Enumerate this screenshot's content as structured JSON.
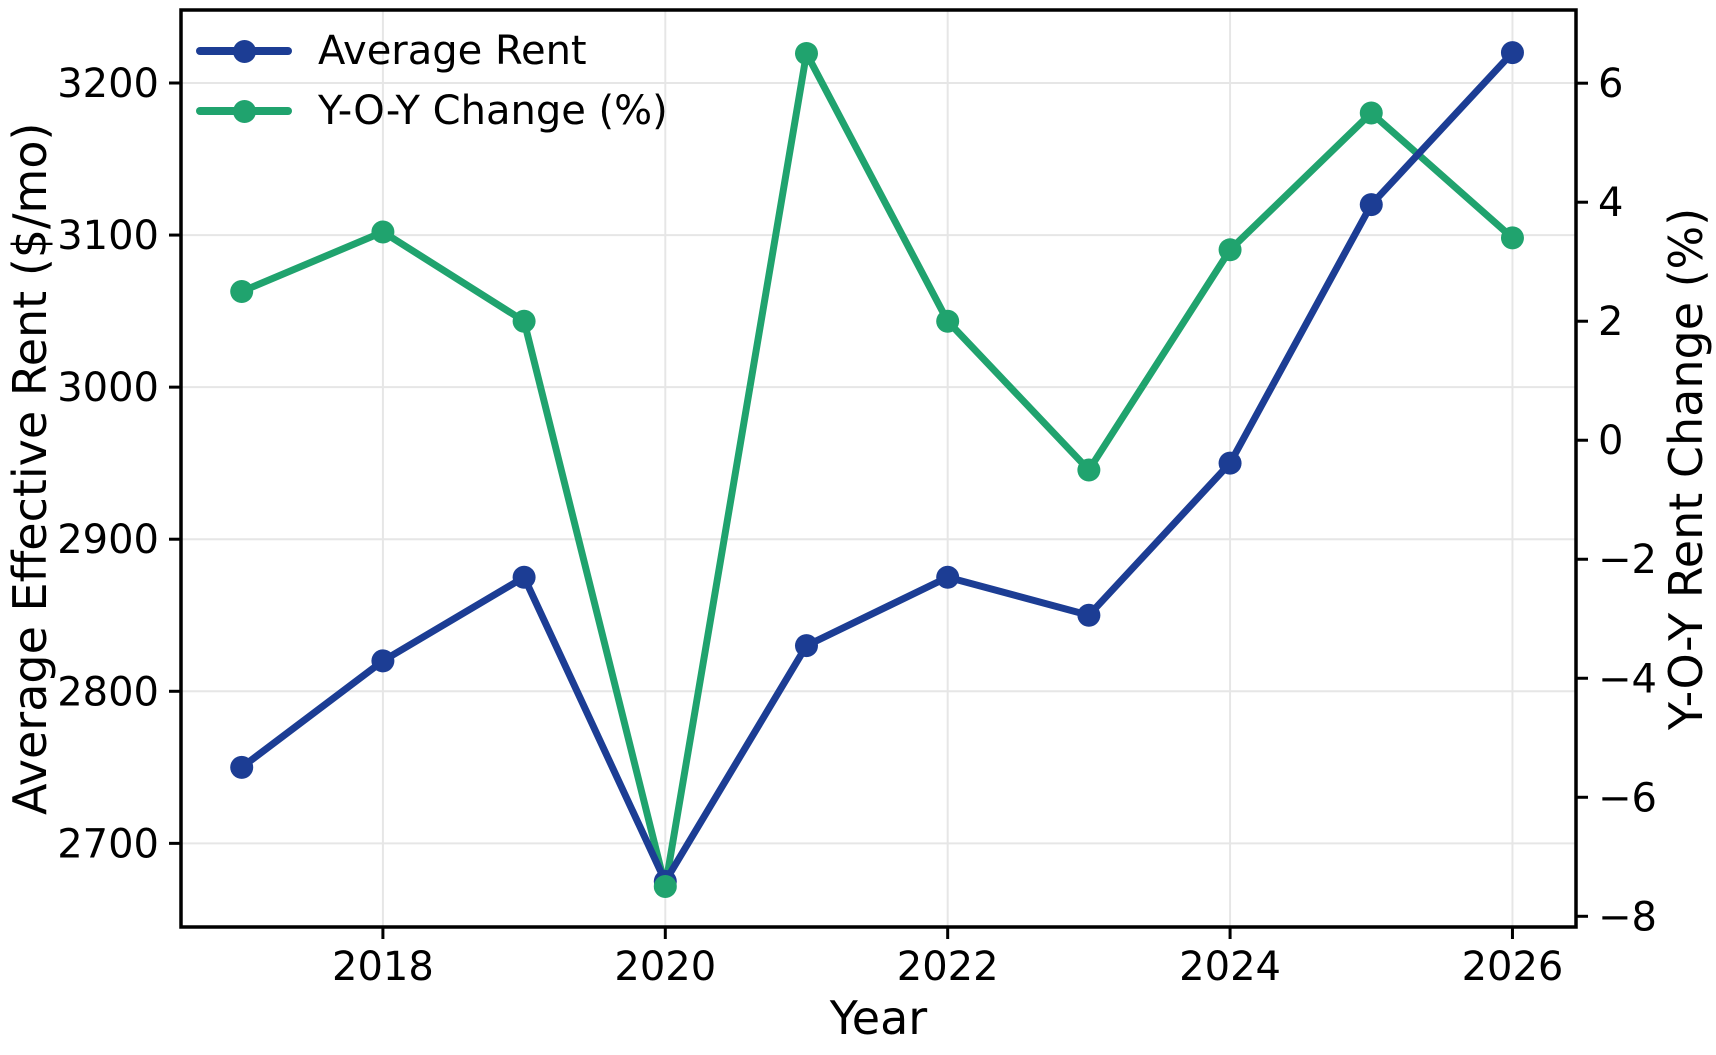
{
  "chart_data": {
    "type": "line",
    "x": [
      2017,
      2018,
      2019,
      2020,
      2021,
      2022,
      2023,
      2024,
      2025,
      2026
    ],
    "series": [
      {
        "name": "Average Rent",
        "axis": "left",
        "color": "#1c3d94",
        "values": [
          2750,
          2820,
          2875,
          2675,
          2830,
          2875,
          2850,
          2950,
          3120,
          3220
        ]
      },
      {
        "name": "Y-O-Y Change (%)",
        "axis": "right",
        "color": "#20a36e",
        "values": [
          2.5,
          3.5,
          2.0,
          -7.5,
          6.5,
          2.0,
          -0.5,
          3.2,
          5.5,
          3.4
        ]
      }
    ],
    "title": "",
    "xlabel": "Year",
    "ylabel_left": "Average Effective Rent ($/mo)",
    "ylabel_right": "Y-O-Y Rent Change (%)",
    "xlim": [
      2016.57,
      2026.45
    ],
    "ylim_left": [
      2645,
      3248
    ],
    "ylim_right": [
      -8.18,
      7.23
    ],
    "xticks": [
      {
        "v": 2018,
        "label": "2018"
      },
      {
        "v": 2020,
        "label": "2020"
      },
      {
        "v": 2022,
        "label": "2022"
      },
      {
        "v": 2024,
        "label": "2024"
      },
      {
        "v": 2026,
        "label": "2026"
      }
    ],
    "yticks_left": [
      {
        "v": 2700,
        "label": "2700"
      },
      {
        "v": 2800,
        "label": "2800"
      },
      {
        "v": 2900,
        "label": "2900"
      },
      {
        "v": 3000,
        "label": "3000"
      },
      {
        "v": 3100,
        "label": "3100"
      },
      {
        "v": 3200,
        "label": "3200"
      }
    ],
    "yticks_right": [
      {
        "v": -8,
        "label": "−8"
      },
      {
        "v": -6,
        "label": "−6"
      },
      {
        "v": -4,
        "label": "−4"
      },
      {
        "v": -2,
        "label": "−2"
      },
      {
        "v": 0,
        "label": "0"
      },
      {
        "v": 2,
        "label": "2"
      },
      {
        "v": 4,
        "label": "4"
      },
      {
        "v": 6,
        "label": "6"
      }
    ],
    "grid": true,
    "legend_position": "upper left",
    "grid_color": "#e6e6e6",
    "axis_color": "#000000"
  }
}
